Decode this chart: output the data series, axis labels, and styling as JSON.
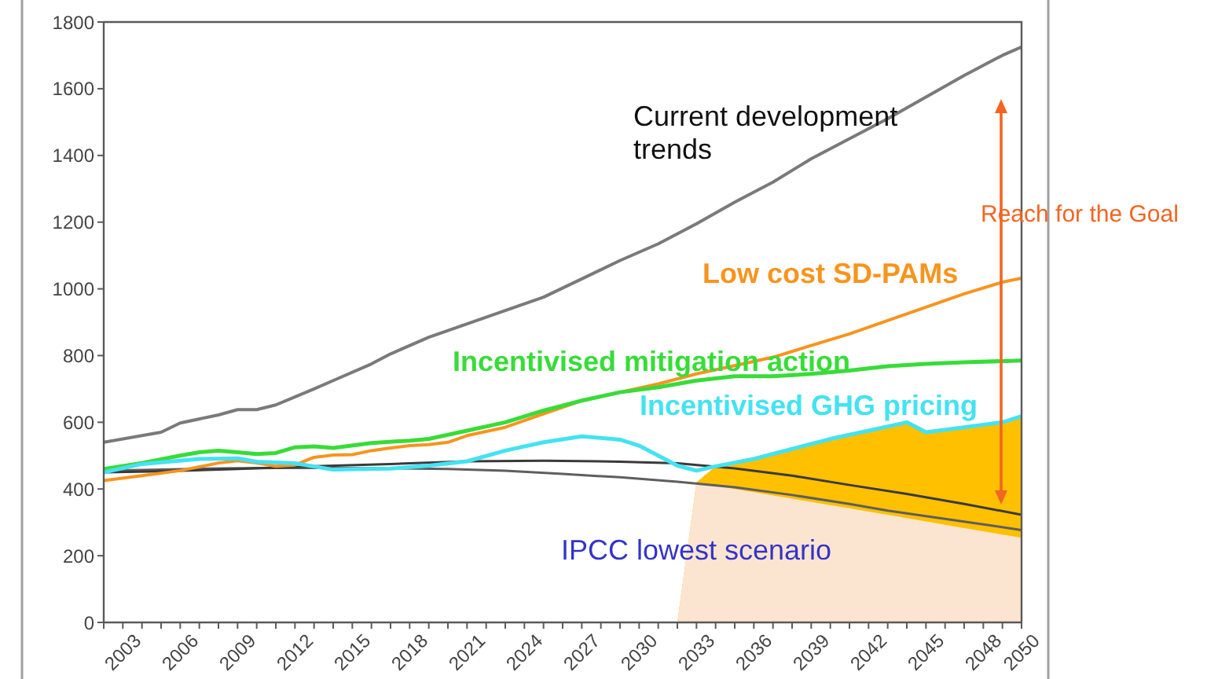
{
  "chart_data": {
    "type": "line",
    "series": [
      {
        "type": "area",
        "color": "#ffc000",
        "x": [
          2032,
          2033,
          2034,
          2036,
          2038,
          2040,
          2042,
          2044,
          2045,
          2047,
          2049,
          2050
        ],
        "values": [
          0,
          420,
          468,
          490,
          520,
          550,
          575,
          600,
          570,
          585,
          600,
          618
        ]
      },
      {
        "type": "area",
        "name": "IPCC lowest scenario",
        "color": "#fbe5d1",
        "x": [
          2032,
          2033,
          2035,
          2038,
          2041,
          2044,
          2047,
          2050
        ],
        "values": [
          0,
          420,
          400,
          371,
          342,
          313,
          283,
          254
        ]
      },
      {
        "color": "#5e5e5e",
        "x": [
          2002,
          2005,
          2008,
          2011,
          2014,
          2017,
          2020,
          2023,
          2026,
          2029,
          2032,
          2035,
          2038,
          2041,
          2043,
          2047,
          2050
        ],
        "values": [
          455,
          458,
          462,
          463,
          463,
          462,
          460,
          455,
          445,
          435,
          422,
          405,
          382,
          355,
          335,
          302,
          277
        ]
      },
      {
        "color": "#3a3a3a",
        "x": [
          2002,
          2005,
          2009,
          2013,
          2017,
          2021,
          2025,
          2029,
          2032,
          2035,
          2038,
          2041,
          2044,
          2047,
          2050
        ],
        "values": [
          450,
          453,
          460,
          468,
          475,
          483,
          485,
          482,
          477,
          462,
          440,
          412,
          385,
          355,
          323
        ]
      },
      {
        "name": "Current development trends",
        "color": "#7a7a7a",
        "x": [
          2002,
          2004,
          2005,
          2006,
          2008,
          2009,
          2010,
          2011,
          2013,
          2014,
          2016,
          2017,
          2019,
          2021,
          2023,
          2025,
          2027,
          2029,
          2031,
          2033,
          2035,
          2037,
          2039,
          2041,
          2043,
          2045,
          2047,
          2049,
          2050
        ],
        "values": [
          540,
          560,
          570,
          598,
          622,
          638,
          638,
          652,
          700,
          725,
          775,
          805,
          855,
          895,
          935,
          975,
          1030,
          1085,
          1135,
          1195,
          1260,
          1320,
          1390,
          1450,
          1510,
          1575,
          1640,
          1700,
          1725
        ]
      },
      {
        "name": "Low cost SD-PAMs",
        "color": "#f7941e",
        "x": [
          2002,
          2004,
          2006,
          2008,
          2009,
          2010,
          2011,
          2012,
          2013,
          2014,
          2015,
          2016,
          2017,
          2018,
          2019,
          2020,
          2021,
          2023,
          2025,
          2027,
          2029,
          2031,
          2033,
          2035,
          2037,
          2039,
          2041,
          2043,
          2045,
          2047,
          2049,
          2050
        ],
        "values": [
          425,
          440,
          455,
          478,
          485,
          478,
          468,
          472,
          495,
          502,
          503,
          515,
          523,
          530,
          533,
          540,
          560,
          585,
          625,
          665,
          690,
          715,
          745,
          770,
          795,
          830,
          865,
          905,
          945,
          985,
          1020,
          1032
        ]
      },
      {
        "name": "Incentivised mitigation action",
        "color": "#38dc38",
        "x": [
          2002,
          2004,
          2006,
          2007,
          2008,
          2009,
          2010,
          2011,
          2012,
          2013,
          2014,
          2016,
          2018,
          2019,
          2021,
          2023,
          2025,
          2027,
          2029,
          2031,
          2033,
          2035,
          2037,
          2039,
          2041,
          2043,
          2045,
          2047,
          2050
        ],
        "values": [
          460,
          478,
          500,
          510,
          515,
          510,
          505,
          508,
          525,
          528,
          523,
          538,
          545,
          550,
          575,
          600,
          635,
          665,
          690,
          705,
          725,
          738,
          738,
          745,
          755,
          768,
          775,
          780,
          785
        ]
      },
      {
        "name": "Incentivised GHG pricing",
        "color": "#44e2f2",
        "x": [
          2002,
          2004,
          2007,
          2009,
          2010,
          2012,
          2014,
          2017,
          2019,
          2021,
          2023,
          2025,
          2027,
          2029,
          2030,
          2031,
          2032,
          2033,
          2034,
          2036,
          2038,
          2040,
          2042,
          2044,
          2045,
          2047,
          2049,
          2050
        ],
        "values": [
          450,
          475,
          490,
          492,
          482,
          477,
          458,
          461,
          470,
          483,
          515,
          540,
          558,
          548,
          530,
          500,
          470,
          455,
          468,
          490,
          520,
          550,
          575,
          600,
          570,
          585,
          600,
          618
        ]
      }
    ],
    "xlim": [
      2002,
      2050
    ],
    "xticks": [
      {
        "value": 2002,
        "label": null
      },
      2003,
      {
        "value": 2004,
        "label": null
      },
      {
        "value": 2005,
        "label": null
      },
      2006,
      {
        "value": 2007,
        "label": null
      },
      {
        "value": 2008,
        "label": null
      },
      2009,
      {
        "value": 2010,
        "label": null
      },
      {
        "value": 2011,
        "label": null
      },
      2012,
      {
        "value": 2013,
        "label": null
      },
      {
        "value": 2014,
        "label": null
      },
      2015,
      {
        "value": 2016,
        "label": null
      },
      {
        "value": 2017,
        "label": null
      },
      2018,
      {
        "value": 2019,
        "label": null
      },
      {
        "value": 2020,
        "label": null
      },
      2021,
      {
        "value": 2022,
        "label": null
      },
      {
        "value": 2023,
        "label": null
      },
      2024,
      {
        "value": 2025,
        "label": null
      },
      {
        "value": 2026,
        "label": null
      },
      2027,
      {
        "value": 2028,
        "label": null
      },
      {
        "value": 2029,
        "label": null
      },
      2030,
      {
        "value": 2031,
        "label": null
      },
      {
        "value": 2032,
        "label": null
      },
      2033,
      {
        "value": 2034,
        "label": null
      },
      {
        "value": 2035,
        "label": null
      },
      2036,
      {
        "value": 2037,
        "label": null
      },
      {
        "value": 2038,
        "label": null
      },
      2039,
      {
        "value": 2040,
        "label": null
      },
      {
        "value": 2041,
        "label": null
      },
      2042,
      {
        "value": 2043,
        "label": null
      },
      {
        "value": 2044,
        "label": null
      },
      2045,
      {
        "value": 2046,
        "label": null
      },
      {
        "value": 2047,
        "label": null
      },
      2048,
      {
        "value": 2049,
        "label": null
      },
      2050
    ],
    "ylim": [
      0,
      1800
    ],
    "yticks": [
      0,
      200,
      400,
      600,
      800,
      1000,
      1200,
      1400,
      1600,
      1800
    ],
    "annotations": [
      "Reach for the Goal"
    ]
  }
}
